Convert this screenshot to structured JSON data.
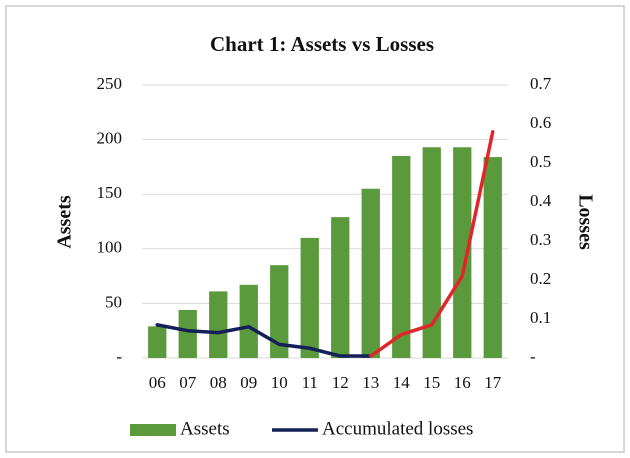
{
  "chart_data": {
    "type": "bar_line",
    "title": "Chart 1: Assets vs Losses",
    "y_label": "Assets",
    "y2_label": "Losses",
    "categories": [
      "06",
      "07",
      "08",
      "09",
      "10",
      "11",
      "12",
      "13",
      "14",
      "15",
      "16",
      "17"
    ],
    "series": [
      {
        "name": "Assets",
        "type": "bar",
        "color": "#5b9a3c",
        "values": [
          29,
          44,
          61,
          67,
          85,
          110,
          129,
          155,
          185,
          193,
          193,
          184
        ]
      },
      {
        "name": "Accumulated losses",
        "type": "line",
        "axis": "y2",
        "color": "#142057",
        "values": [
          0.085,
          0.07,
          0.065,
          0.08,
          0.035,
          0.025,
          0.005,
          0.005,
          0.06,
          0.085,
          0.21,
          0.58
        ],
        "color_after": {
          "category": "13",
          "color": "#e0262a"
        }
      }
    ],
    "ylim": [
      0,
      250
    ],
    "yticks": [
      {
        "value": 0,
        "label": "-"
      },
      50,
      100,
      150,
      200,
      250
    ],
    "y2lim": [
      0,
      0.7
    ],
    "y2ticks": [
      {
        "value": 0,
        "label": "-"
      },
      0.1,
      0.2,
      0.3,
      0.4,
      0.5,
      0.6,
      0.7
    ],
    "grid": true,
    "legend": "bottom"
  }
}
